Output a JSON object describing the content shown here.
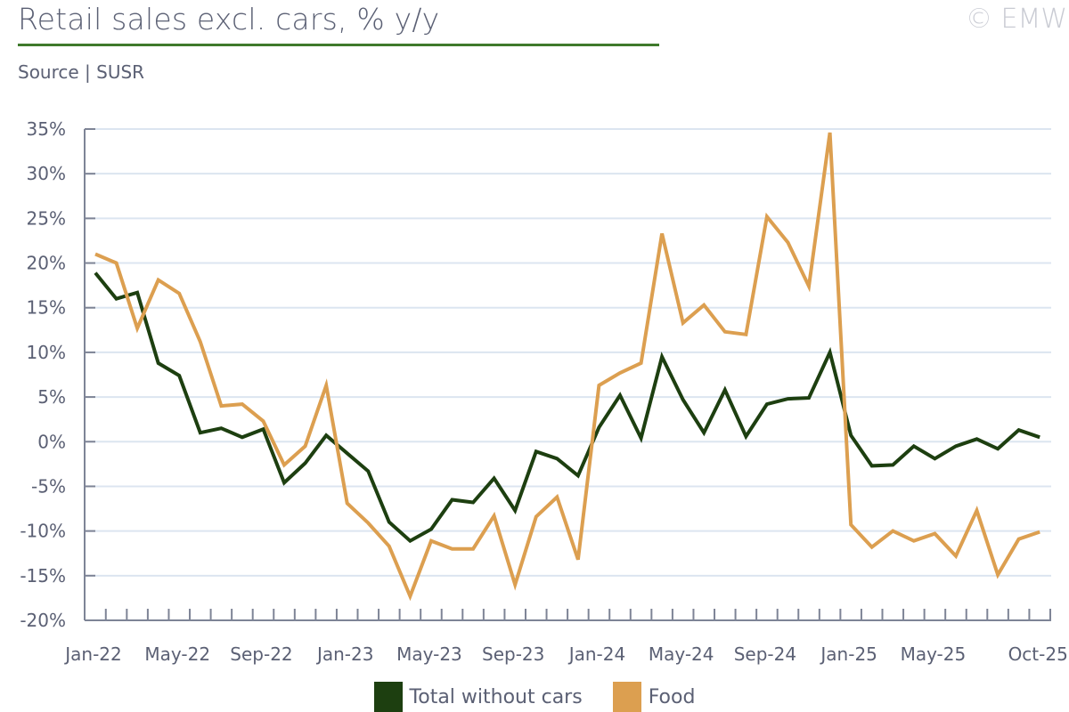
{
  "title": "Retail sales excl. cars, % y/y",
  "copyright": "© EMW",
  "source": "Source | SUSR",
  "colors": {
    "total": "#1d3f10",
    "food": "#dc9f50",
    "grid": "#dce5f0",
    "axis": "#7e8496"
  },
  "chart_data": {
    "type": "line",
    "title": "Retail sales excl. cars, % y/y",
    "xlabel": "",
    "ylabel": "",
    "ylim": [
      -20,
      35
    ],
    "yticks": [
      "-20%",
      "-15%",
      "-10%",
      "-5%",
      "0%",
      "5%",
      "10%",
      "15%",
      "20%",
      "25%",
      "30%",
      "35%"
    ],
    "ytick_values": [
      -20,
      -15,
      -10,
      -5,
      0,
      5,
      10,
      15,
      20,
      25,
      30,
      35
    ],
    "x_start": "Jan-22",
    "x_end": "Oct-25",
    "n_points": 46,
    "xtick_labels": [
      {
        "index": 0,
        "label": "Jan-22"
      },
      {
        "index": 4,
        "label": "May-22"
      },
      {
        "index": 8,
        "label": "Sep-22"
      },
      {
        "index": 12,
        "label": "Jan-23"
      },
      {
        "index": 16,
        "label": "May-23"
      },
      {
        "index": 20,
        "label": "Sep-23"
      },
      {
        "index": 24,
        "label": "Jan-24"
      },
      {
        "index": 28,
        "label": "May-24"
      },
      {
        "index": 32,
        "label": "Sep-24"
      },
      {
        "index": 36,
        "label": "Jan-25"
      },
      {
        "index": 40,
        "label": "May-25"
      },
      {
        "index": 45,
        "label": "Oct-25"
      }
    ],
    "grid": true,
    "legend_position": "bottom-center",
    "series": [
      {
        "name": "Total without cars",
        "color": "#1d3f10",
        "values": [
          18.9,
          16.0,
          16.7,
          8.8,
          7.4,
          1.0,
          1.5,
          0.5,
          1.4,
          -4.6,
          -2.4,
          0.7,
          -1.3,
          -3.3,
          -9.0,
          -11.1,
          -9.8,
          -6.5,
          -6.8,
          -4.1,
          -7.7,
          -1.1,
          -1.9,
          -3.8,
          1.6,
          5.2,
          0.4,
          9.5,
          4.7,
          1.0,
          5.8,
          0.6,
          4.2,
          4.8,
          4.9,
          10.0,
          0.7,
          -2.7,
          -2.6,
          -0.5,
          -1.9,
          -0.5,
          0.3,
          -0.8,
          1.3,
          0.5
        ]
      },
      {
        "name": "Food",
        "color": "#dc9f50",
        "values": [
          21.0,
          20.0,
          12.7,
          18.1,
          16.6,
          11.2,
          4.0,
          4.2,
          2.3,
          -2.6,
          -0.5,
          6.3,
          -6.9,
          -9.1,
          -11.7,
          -17.3,
          -11.1,
          -12.0,
          -12.0,
          -8.3,
          -16.0,
          -8.4,
          -6.2,
          -13.2,
          6.3,
          7.7,
          8.8,
          23.3,
          13.3,
          15.3,
          12.3,
          12.0,
          25.2,
          22.3,
          17.4,
          34.6,
          -9.3,
          -11.8,
          -10.0,
          -11.1,
          -10.3,
          -12.8,
          -7.7,
          -14.9,
          -10.9,
          -10.1
        ]
      }
    ]
  }
}
